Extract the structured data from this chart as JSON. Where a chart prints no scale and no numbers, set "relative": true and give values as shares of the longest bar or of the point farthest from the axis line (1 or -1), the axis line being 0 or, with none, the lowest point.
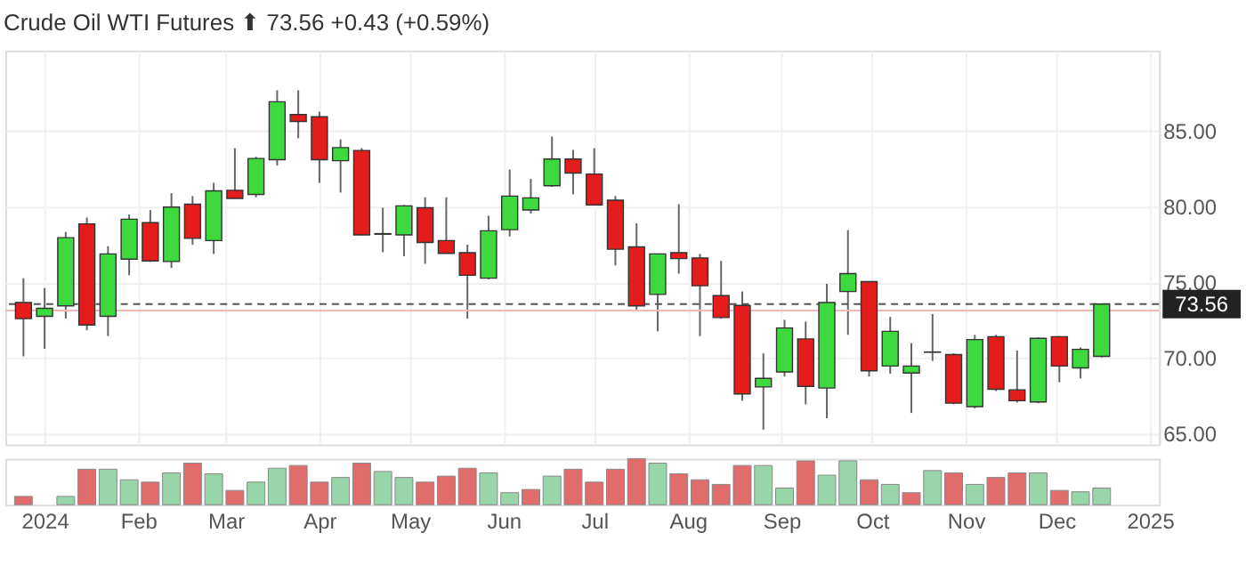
{
  "chart_data": [
    {
      "type": "candlestick",
      "title": "Crude Oil WTI Futures ⬆ 73.56 +0.43 (+0.59%)",
      "x": [
        "2023-12-25",
        "2024-01-01",
        "2024-01-08",
        "2024-01-15",
        "2024-01-22",
        "2024-01-29",
        "2024-02-05",
        "2024-02-12",
        "2024-02-19",
        "2024-02-26",
        "2024-03-04",
        "2024-03-11",
        "2024-03-18",
        "2024-03-25",
        "2024-04-01",
        "2024-04-08",
        "2024-04-15",
        "2024-04-22",
        "2024-04-29",
        "2024-05-06",
        "2024-05-13",
        "2024-05-20",
        "2024-05-27",
        "2024-06-03",
        "2024-06-10",
        "2024-06-17",
        "2024-06-24",
        "2024-07-01",
        "2024-07-08",
        "2024-07-15",
        "2024-07-22",
        "2024-07-29",
        "2024-08-05",
        "2024-08-12",
        "2024-08-19",
        "2024-08-26",
        "2024-09-02",
        "2024-09-09",
        "2024-09-16",
        "2024-09-23",
        "2024-09-30",
        "2024-10-07",
        "2024-10-14",
        "2024-10-21",
        "2024-10-28",
        "2024-11-04",
        "2024-11-11",
        "2024-11-18",
        "2024-11-25",
        "2024-12-02",
        "2024-12-09",
        "2024-12-16"
      ],
      "ohlc": [
        [
          73.66,
          75.27,
          70.11,
          72.6
        ],
        [
          72.75,
          74.62,
          70.61,
          73.28
        ],
        [
          73.44,
          78.32,
          72.6,
          77.94
        ],
        [
          78.85,
          79.27,
          71.83,
          72.18
        ],
        [
          72.75,
          77.37,
          71.45,
          76.87
        ],
        [
          76.53,
          79.47,
          75.46,
          79.16
        ],
        [
          78.93,
          79.77,
          76.34,
          76.41
        ],
        [
          76.37,
          80.88,
          75.95,
          79.96
        ],
        [
          80.15,
          80.69,
          77.48,
          77.9
        ],
        [
          77.75,
          81.56,
          76.87,
          81.03
        ],
        [
          81.07,
          83.85,
          80.5,
          80.53
        ],
        [
          80.8,
          83.28,
          80.61,
          83.17
        ],
        [
          83.09,
          87.67,
          82.71,
          86.91
        ],
        [
          86.07,
          87.67,
          84.5,
          85.61
        ],
        [
          85.92,
          86.26,
          81.56,
          83.09
        ],
        [
          83.02,
          84.43,
          80.92,
          83.89
        ],
        [
          83.7,
          83.85,
          78.1,
          78.13
        ],
        [
          78.21,
          79.92,
          76.98,
          78.17
        ],
        [
          78.13,
          80.1,
          76.72,
          80.04
        ],
        [
          79.92,
          80.61,
          76.22,
          77.63
        ],
        [
          77.75,
          80.61,
          76.9,
          76.91
        ],
        [
          76.95,
          77.48,
          72.6,
          75.46
        ],
        [
          75.27,
          79.39,
          75.2,
          78.4
        ],
        [
          78.47,
          82.44,
          78.02,
          80.69
        ],
        [
          79.77,
          81.83,
          79.54,
          80.57
        ],
        [
          81.37,
          84.62,
          81.3,
          83.13
        ],
        [
          83.13,
          83.74,
          80.8,
          82.21
        ],
        [
          82.14,
          83.85,
          80.1,
          80.11
        ],
        [
          80.42,
          80.69,
          76.11,
          77.18
        ],
        [
          77.33,
          78.89,
          73.09,
          73.44
        ],
        [
          74.2,
          76.9,
          71.76,
          76.87
        ],
        [
          76.95,
          80.15,
          75.57,
          76.56
        ],
        [
          76.6,
          76.87,
          71.45,
          74.77
        ],
        [
          74.12,
          76.41,
          72.6,
          72.67
        ],
        [
          73.47,
          74.39,
          67.18,
          67.63
        ],
        [
          68.09,
          70.31,
          65.27,
          68.66
        ],
        [
          69.08,
          72.52,
          68.78,
          71.98
        ],
        [
          71.26,
          72.4,
          66.95,
          68.13
        ],
        [
          68.02,
          74.89,
          66.03,
          73.66
        ],
        [
          74.39,
          78.44,
          71.53,
          75.57
        ],
        [
          75.04,
          75.04,
          68.78,
          69.16
        ],
        [
          69.47,
          72.71,
          68.97,
          71.76
        ],
        [
          69.01,
          70.99,
          66.37,
          69.47
        ],
        [
          70.4,
          72.9,
          69.81,
          70.38
        ],
        [
          70.23,
          70.31,
          66.95,
          67.02
        ],
        [
          66.79,
          71.53,
          66.68,
          71.22
        ],
        [
          71.41,
          71.53,
          67.82,
          67.94
        ],
        [
          67.9,
          70.5,
          67.06,
          67.18
        ],
        [
          67.1,
          71.37,
          67.02,
          71.3
        ],
        [
          71.41,
          71.45,
          68.4,
          69.47
        ],
        [
          69.35,
          70.69,
          68.66,
          70.57
        ],
        [
          70.11,
          73.59,
          70.04,
          73.56
        ]
      ],
      "colors": [
        "#e51c1c",
        "#3ed93e",
        "#3ed93e",
        "#e51c1c",
        "#3ed93e",
        "#3ed93e",
        "#e51c1c",
        "#3ed93e",
        "#e51c1c",
        "#3ed93e",
        "#e51c1c",
        "#3ed93e",
        "#3ed93e",
        "#e51c1c",
        "#e51c1c",
        "#3ed93e",
        "#e51c1c",
        "#e51c1c",
        "#3ed93e",
        "#e51c1c",
        "#e51c1c",
        "#e51c1c",
        "#3ed93e",
        "#3ed93e",
        "#3ed93e",
        "#3ed93e",
        "#e51c1c",
        "#e51c1c",
        "#e51c1c",
        "#e51c1c",
        "#3ed93e",
        "#e51c1c",
        "#e51c1c",
        "#e51c1c",
        "#e51c1c",
        "#3ed93e",
        "#3ed93e",
        "#e51c1c",
        "#3ed93e",
        "#3ed93e",
        "#e51c1c",
        "#3ed93e",
        "#3ed93e",
        "#e51c1c",
        "#e51c1c",
        "#3ed93e",
        "#e51c1c",
        "#e51c1c",
        "#3ed93e",
        "#e51c1c",
        "#3ed93e",
        "#3ed93e"
      ],
      "xlim": [
        "2023-12-19",
        "2025-01-04"
      ],
      "xticks": [
        {
          "value": "2024-01-01",
          "label": null
        },
        {
          "value": "2024-02-01",
          "label": null
        },
        {
          "value": "2024-03-01",
          "label": null
        },
        {
          "value": "2024-04-01",
          "label": null
        },
        {
          "value": "2024-05-01",
          "label": null
        },
        {
          "value": "2024-06-01",
          "label": null
        },
        {
          "value": "2024-07-01",
          "label": null
        },
        {
          "value": "2024-08-01",
          "label": null
        },
        {
          "value": "2024-09-01",
          "label": null
        },
        {
          "value": "2024-10-01",
          "label": null
        },
        {
          "value": "2024-11-01",
          "label": null
        },
        {
          "value": "2024-12-01",
          "label": null
        },
        {
          "value": "2025-01-01",
          "label": null
        }
      ],
      "ylim": [
        64.3,
        90.3
      ],
      "yticks": [
        {
          "value": 65,
          "label": "65.00"
        },
        {
          "value": 70,
          "label": "70.00"
        },
        {
          "value": 75,
          "label": "75.00"
        },
        {
          "value": 80,
          "label": "80.00"
        },
        {
          "value": 85,
          "label": "85.00"
        }
      ],
      "ref_lines": [
        {
          "axis": "y",
          "value": 73.13,
          "color": "#f2b8b8",
          "line_style": "solid"
        },
        {
          "axis": "y",
          "value": 73.56,
          "label": "73.56",
          "color": "#555555",
          "line_style": "dashed"
        }
      ],
      "grid": true,
      "tick_labels": "y"
    },
    {
      "type": "bar",
      "relative": true,
      "x": [
        "2023-12-25",
        "2024-01-01",
        "2024-01-08",
        "2024-01-15",
        "2024-01-22",
        "2024-01-29",
        "2024-02-05",
        "2024-02-12",
        "2024-02-19",
        "2024-02-26",
        "2024-03-04",
        "2024-03-11",
        "2024-03-18",
        "2024-03-25",
        "2024-04-01",
        "2024-04-08",
        "2024-04-15",
        "2024-04-22",
        "2024-04-29",
        "2024-05-06",
        "2024-05-13",
        "2024-05-20",
        "2024-05-27",
        "2024-06-03",
        "2024-06-10",
        "2024-06-17",
        "2024-06-24",
        "2024-07-01",
        "2024-07-08",
        "2024-07-15",
        "2024-07-22",
        "2024-07-29",
        "2024-08-05",
        "2024-08-12",
        "2024-08-19",
        "2024-08-26",
        "2024-09-02",
        "2024-09-09",
        "2024-09-16",
        "2024-09-23",
        "2024-09-30",
        "2024-10-07",
        "2024-10-14",
        "2024-10-21",
        "2024-10-28",
        "2024-11-04",
        "2024-11-11",
        "2024-11-18",
        "2024-11-25",
        "2024-12-02",
        "2024-12-09",
        "2024-12-16"
      ],
      "values": [
        0.18,
        null,
        0.18,
        0.77,
        0.77,
        0.54,
        0.49,
        0.69,
        0.9,
        0.67,
        0.31,
        0.49,
        0.79,
        0.85,
        0.49,
        0.59,
        0.9,
        0.72,
        0.59,
        0.49,
        0.62,
        0.79,
        0.69,
        0.26,
        0.33,
        0.62,
        0.77,
        0.49,
        0.77,
        1,
        0.9,
        0.67,
        0.54,
        0.44,
        0.85,
        0.85,
        0.36,
        0.95,
        0.64,
        0.95,
        0.54,
        0.44,
        0.26,
        0.74,
        0.69,
        0.44,
        0.59,
        0.69,
        0.69,
        0.31,
        0.28,
        0.36
      ],
      "colors": [
        "#e06c6c",
        "#98d6a9",
        "#98d6a9",
        "#e06c6c",
        "#98d6a9",
        "#98d6a9",
        "#e06c6c",
        "#98d6a9",
        "#e06c6c",
        "#98d6a9",
        "#e06c6c",
        "#98d6a9",
        "#98d6a9",
        "#e06c6c",
        "#e06c6c",
        "#98d6a9",
        "#e06c6c",
        "#98d6a9",
        "#98d6a9",
        "#e06c6c",
        "#e06c6c",
        "#e06c6c",
        "#98d6a9",
        "#98d6a9",
        "#e06c6c",
        "#98d6a9",
        "#e06c6c",
        "#e06c6c",
        "#e06c6c",
        "#e06c6c",
        "#98d6a9",
        "#e06c6c",
        "#e06c6c",
        "#e06c6c",
        "#e06c6c",
        "#98d6a9",
        "#98d6a9",
        "#e06c6c",
        "#98d6a9",
        "#98d6a9",
        "#e06c6c",
        "#98d6a9",
        "#e06c6c",
        "#98d6a9",
        "#e06c6c",
        "#98d6a9",
        "#e06c6c",
        "#e06c6c",
        "#98d6a9",
        "#e06c6c",
        "#98d6a9",
        "#98d6a9"
      ],
      "xlim": [
        "2023-12-19",
        "2025-01-04"
      ],
      "xticks": [
        {
          "value": "2024-01-01",
          "label": "2024"
        },
        {
          "value": "2024-02-01",
          "label": "Feb"
        },
        {
          "value": "2024-03-01",
          "label": "Mar"
        },
        {
          "value": "2024-04-01",
          "label": "Apr"
        },
        {
          "value": "2024-05-01",
          "label": "May"
        },
        {
          "value": "2024-06-01",
          "label": "Jun"
        },
        {
          "value": "2024-07-01",
          "label": "Jul"
        },
        {
          "value": "2024-08-01",
          "label": "Aug"
        },
        {
          "value": "2024-09-01",
          "label": "Sep"
        },
        {
          "value": "2024-10-01",
          "label": "Oct"
        },
        {
          "value": "2024-11-01",
          "label": "Nov"
        },
        {
          "value": "2024-12-01",
          "label": "Dec"
        },
        {
          "value": "2025-01-01",
          "label": "2025"
        }
      ],
      "tick_labels": "x"
    }
  ]
}
